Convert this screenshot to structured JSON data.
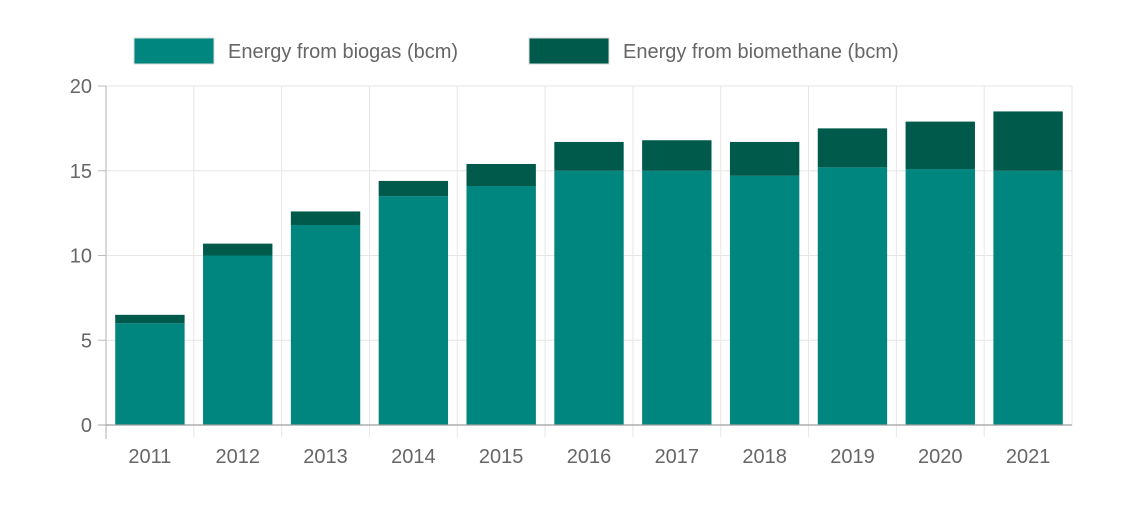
{
  "chart_data": {
    "type": "bar",
    "stacked": true,
    "categories": [
      "2011",
      "2012",
      "2013",
      "2014",
      "2015",
      "2016",
      "2017",
      "2018",
      "2019",
      "2020",
      "2021"
    ],
    "series": [
      {
        "name": "Energy from biogas (bcm)",
        "color": "#00857f",
        "values": [
          6.0,
          10.0,
          11.8,
          13.5,
          14.1,
          15.0,
          15.0,
          14.7,
          15.2,
          15.1,
          15.0
        ]
      },
      {
        "name": "Energy from biomethane (bcm)",
        "color": "#005a4b",
        "values": [
          0.5,
          0.7,
          0.8,
          0.9,
          1.3,
          1.7,
          1.8,
          2.0,
          2.3,
          2.8,
          3.5
        ]
      }
    ],
    "ylim": [
      0,
      20
    ],
    "yticks": [
      0,
      5,
      10,
      15,
      20
    ],
    "grid": true,
    "legend_position": "top"
  }
}
